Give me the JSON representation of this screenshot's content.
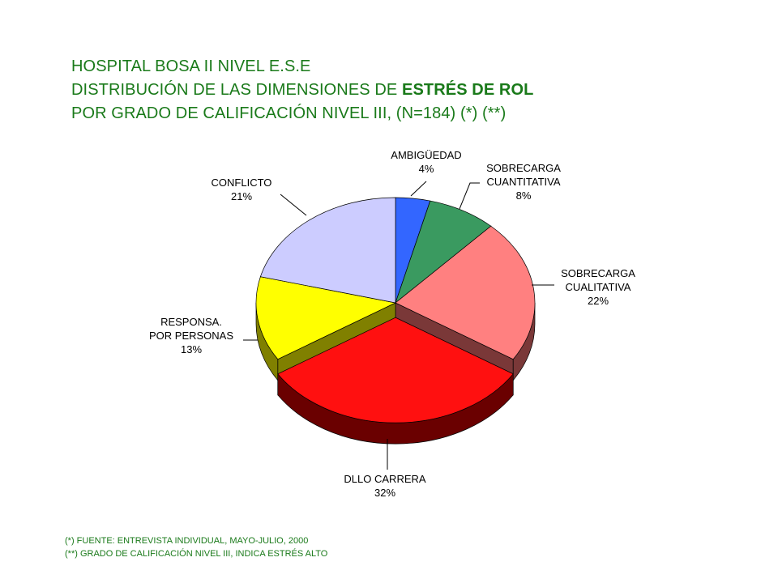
{
  "header": {
    "line1": "HOSPITAL BOSA II NIVEL E.S.E",
    "line2_prefix": "DISTRIBUCIÓN DE LAS DIMENSIONES DE ",
    "line2_emphasis": "ESTRÉS DE ROL",
    "line3": "POR GRADO DE CALIFICACIÓN NIVEL III,  (N=184) (*) (**)"
  },
  "footnotes": {
    "note1": "(*) FUENTE:  ENTREVISTA  INDIVIDUAL,  MAYO-JULIO,  2000",
    "note2": "(**)  GRADO DE CALIFICACIÓN   NIVEL III,  INDICA  ESTRÉS  ALTO"
  },
  "chart_data": {
    "type": "pie",
    "title": "DISTRIBUCIÓN DE LAS DIMENSIONES DE ESTRÉS DE ROL POR GRADO DE CALIFICACIÓN NIVEL III, (N=184)",
    "style": "3d",
    "slices": [
      {
        "label_lines": [
          "AMBIGÜEDAD"
        ],
        "value": 4,
        "value_label": "4%",
        "color": "#3366ff",
        "side_color": "#1a3380"
      },
      {
        "label_lines": [
          "SOBRECARGA",
          "CUANTITATIVA"
        ],
        "value": 8,
        "value_label": "8%",
        "color": "#3a9a60",
        "side_color": "#1d4d30"
      },
      {
        "label_lines": [
          "SOBRECARGA",
          "CUALITATIVA"
        ],
        "value": 22,
        "value_label": "22%",
        "color": "#ff8080",
        "side_color": "#7a3838"
      },
      {
        "label_lines": [
          "DLLO CARRERA"
        ],
        "value": 32,
        "value_label": "32%",
        "color": "#ff1010",
        "side_color": "#6a0000"
      },
      {
        "label_lines": [
          "RESPONSA.",
          "POR PERSONAS"
        ],
        "value": 13,
        "value_label": "13%",
        "color": "#ffff00",
        "side_color": "#808000"
      },
      {
        "label_lines": [
          "CONFLICTO"
        ],
        "value": 21,
        "value_label": "21%",
        "color": "#ccccff",
        "side_color": "#66668a"
      }
    ]
  }
}
